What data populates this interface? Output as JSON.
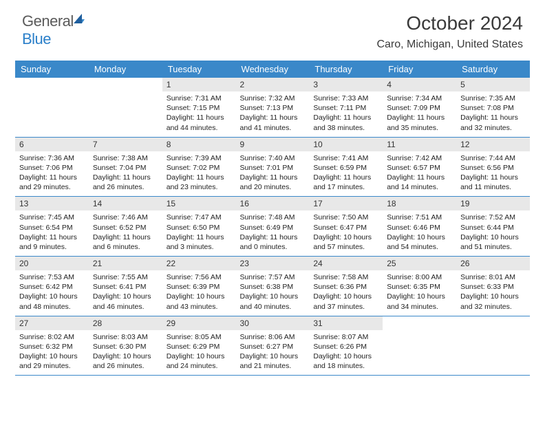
{
  "brand": {
    "part1": "General",
    "part2": "Blue"
  },
  "title": "October 2024",
  "location": "Caro, Michigan, United States",
  "colors": {
    "header_bg": "#3a88c9",
    "header_text": "#ffffff",
    "daynum_bg": "#e8e8e8",
    "row_border": "#3a88c9",
    "text": "#222222",
    "logo_gray": "#5a5a5a",
    "logo_blue": "#2a7fc9"
  },
  "day_headers": [
    "Sunday",
    "Monday",
    "Tuesday",
    "Wednesday",
    "Thursday",
    "Friday",
    "Saturday"
  ],
  "weeks": [
    [
      null,
      null,
      {
        "n": "1",
        "sr": "7:31 AM",
        "ss": "7:15 PM",
        "dl": "11 hours and 44 minutes."
      },
      {
        "n": "2",
        "sr": "7:32 AM",
        "ss": "7:13 PM",
        "dl": "11 hours and 41 minutes."
      },
      {
        "n": "3",
        "sr": "7:33 AM",
        "ss": "7:11 PM",
        "dl": "11 hours and 38 minutes."
      },
      {
        "n": "4",
        "sr": "7:34 AM",
        "ss": "7:09 PM",
        "dl": "11 hours and 35 minutes."
      },
      {
        "n": "5",
        "sr": "7:35 AM",
        "ss": "7:08 PM",
        "dl": "11 hours and 32 minutes."
      }
    ],
    [
      {
        "n": "6",
        "sr": "7:36 AM",
        "ss": "7:06 PM",
        "dl": "11 hours and 29 minutes."
      },
      {
        "n": "7",
        "sr": "7:38 AM",
        "ss": "7:04 PM",
        "dl": "11 hours and 26 minutes."
      },
      {
        "n": "8",
        "sr": "7:39 AM",
        "ss": "7:02 PM",
        "dl": "11 hours and 23 minutes."
      },
      {
        "n": "9",
        "sr": "7:40 AM",
        "ss": "7:01 PM",
        "dl": "11 hours and 20 minutes."
      },
      {
        "n": "10",
        "sr": "7:41 AM",
        "ss": "6:59 PM",
        "dl": "11 hours and 17 minutes."
      },
      {
        "n": "11",
        "sr": "7:42 AM",
        "ss": "6:57 PM",
        "dl": "11 hours and 14 minutes."
      },
      {
        "n": "12",
        "sr": "7:44 AM",
        "ss": "6:56 PM",
        "dl": "11 hours and 11 minutes."
      }
    ],
    [
      {
        "n": "13",
        "sr": "7:45 AM",
        "ss": "6:54 PM",
        "dl": "11 hours and 9 minutes."
      },
      {
        "n": "14",
        "sr": "7:46 AM",
        "ss": "6:52 PM",
        "dl": "11 hours and 6 minutes."
      },
      {
        "n": "15",
        "sr": "7:47 AM",
        "ss": "6:50 PM",
        "dl": "11 hours and 3 minutes."
      },
      {
        "n": "16",
        "sr": "7:48 AM",
        "ss": "6:49 PM",
        "dl": "11 hours and 0 minutes."
      },
      {
        "n": "17",
        "sr": "7:50 AM",
        "ss": "6:47 PM",
        "dl": "10 hours and 57 minutes."
      },
      {
        "n": "18",
        "sr": "7:51 AM",
        "ss": "6:46 PM",
        "dl": "10 hours and 54 minutes."
      },
      {
        "n": "19",
        "sr": "7:52 AM",
        "ss": "6:44 PM",
        "dl": "10 hours and 51 minutes."
      }
    ],
    [
      {
        "n": "20",
        "sr": "7:53 AM",
        "ss": "6:42 PM",
        "dl": "10 hours and 48 minutes."
      },
      {
        "n": "21",
        "sr": "7:55 AM",
        "ss": "6:41 PM",
        "dl": "10 hours and 46 minutes."
      },
      {
        "n": "22",
        "sr": "7:56 AM",
        "ss": "6:39 PM",
        "dl": "10 hours and 43 minutes."
      },
      {
        "n": "23",
        "sr": "7:57 AM",
        "ss": "6:38 PM",
        "dl": "10 hours and 40 minutes."
      },
      {
        "n": "24",
        "sr": "7:58 AM",
        "ss": "6:36 PM",
        "dl": "10 hours and 37 minutes."
      },
      {
        "n": "25",
        "sr": "8:00 AM",
        "ss": "6:35 PM",
        "dl": "10 hours and 34 minutes."
      },
      {
        "n": "26",
        "sr": "8:01 AM",
        "ss": "6:33 PM",
        "dl": "10 hours and 32 minutes."
      }
    ],
    [
      {
        "n": "27",
        "sr": "8:02 AM",
        "ss": "6:32 PM",
        "dl": "10 hours and 29 minutes."
      },
      {
        "n": "28",
        "sr": "8:03 AM",
        "ss": "6:30 PM",
        "dl": "10 hours and 26 minutes."
      },
      {
        "n": "29",
        "sr": "8:05 AM",
        "ss": "6:29 PM",
        "dl": "10 hours and 24 minutes."
      },
      {
        "n": "30",
        "sr": "8:06 AM",
        "ss": "6:27 PM",
        "dl": "10 hours and 21 minutes."
      },
      {
        "n": "31",
        "sr": "8:07 AM",
        "ss": "6:26 PM",
        "dl": "10 hours and 18 minutes."
      },
      null,
      null
    ]
  ],
  "labels": {
    "sunrise": "Sunrise:",
    "sunset": "Sunset:",
    "daylight": "Daylight:"
  }
}
